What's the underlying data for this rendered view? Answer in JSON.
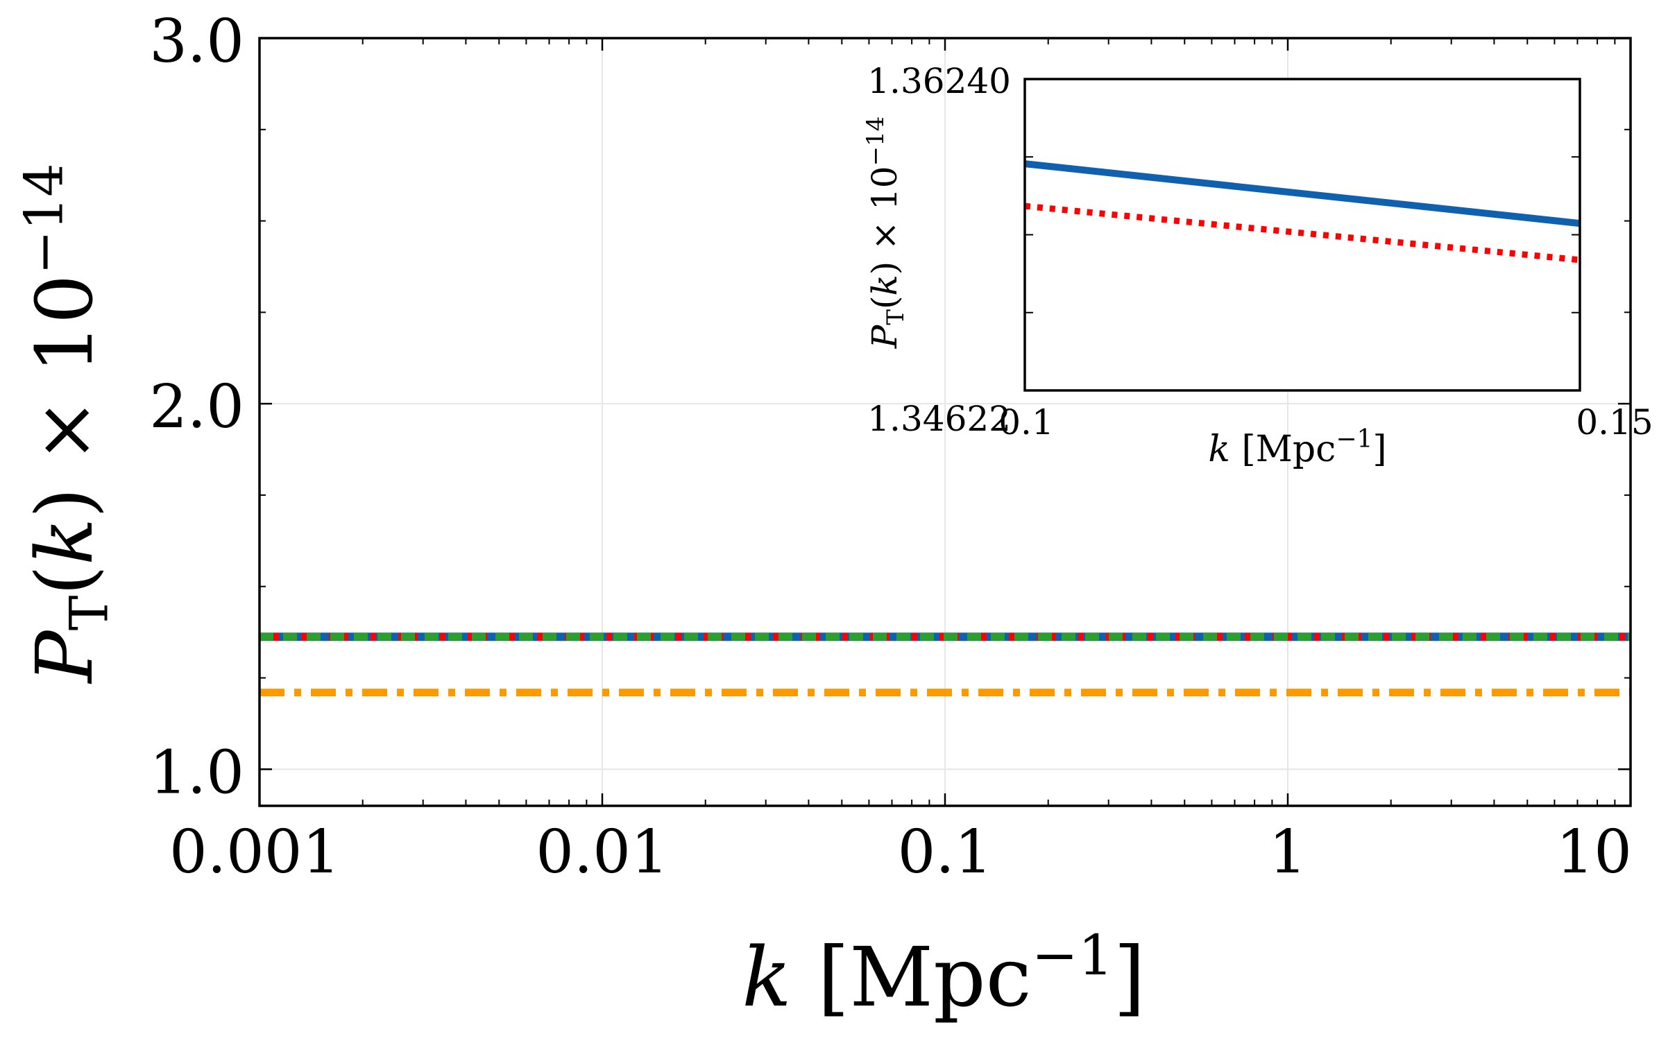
{
  "chart_data": [
    {
      "type": "line",
      "role": "main",
      "title": "",
      "xlabel": "k [Mpc^-1]",
      "ylabel": "P_T(k) × 10^-14",
      "xscale": "log",
      "xlim": [
        0.001,
        10
      ],
      "ylim": [
        0.9,
        3.0
      ],
      "grid": true,
      "x_tick_labels": [
        "0.001",
        "0.01",
        "0.1",
        "1",
        "10"
      ],
      "x_tick_values": [
        0.001,
        0.01,
        0.1,
        1,
        10
      ],
      "y_tick_labels": [
        "1.0",
        "2.0",
        "3.0"
      ],
      "y_tick_values": [
        1.0,
        2.0,
        3.0
      ],
      "series": [
        {
          "name": "solid",
          "color": "#1060b0",
          "style": "solid",
          "x": [
            0.001,
            10
          ],
          "values": [
            1.3623,
            1.3623
          ]
        },
        {
          "name": "dotted",
          "color": "#ff0000",
          "style": "dotted",
          "x": [
            0.001,
            10
          ],
          "values": [
            1.3623,
            1.3623
          ]
        },
        {
          "name": "dashed",
          "color": "#2ca02c",
          "style": "dashed",
          "x": [
            0.001,
            10
          ],
          "values": [
            1.3623,
            1.3623
          ]
        },
        {
          "name": "dashdot",
          "color": "#ff9900",
          "style": "dashdot",
          "x": [
            0.001,
            10
          ],
          "values": [
            1.21,
            1.21
          ]
        }
      ]
    },
    {
      "type": "line",
      "role": "inset",
      "title": "",
      "xlabel": "k [Mpc^-1]",
      "ylabel": "P_T(k) × 10^-14",
      "xscale": "linear",
      "xlim": [
        0.1,
        0.15
      ],
      "ylim": [
        1.34622,
        1.3624
      ],
      "x_tick_labels": [
        "0.1",
        "0.15"
      ],
      "x_tick_values": [
        0.1,
        0.15
      ],
      "y_tick_labels": [
        "1.34622",
        "1.36240"
      ],
      "y_tick_values": [
        1.34622,
        1.3624
      ],
      "series": [
        {
          "name": "solid",
          "color": "#1060b0",
          "style": "solid",
          "x": [
            0.1,
            0.15
          ],
          "values": [
            1.358,
            1.3549
          ]
        },
        {
          "name": "dotted",
          "color": "#ff0000",
          "style": "dotted",
          "x": [
            0.1,
            0.15
          ],
          "values": [
            1.3558,
            1.353
          ]
        }
      ]
    }
  ]
}
